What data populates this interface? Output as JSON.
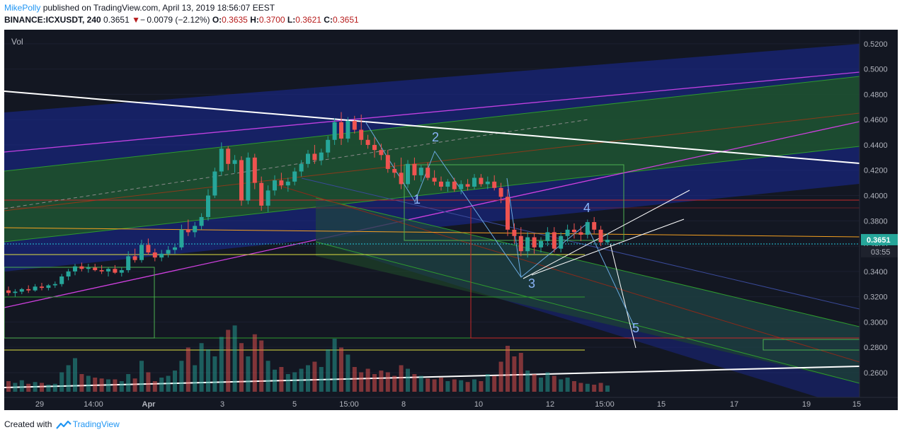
{
  "header": {
    "author": "MikePolly",
    "published": "published on TradingView.com, April 13, 2019 18:56:07 EEST"
  },
  "symbol_bar": {
    "symbol": "BINANCE:ICXUSDT, 240",
    "price": "0.3651",
    "change": "− 0.0079 (−2.12%)",
    "o_label": "O:",
    "o": "0.3635",
    "h_label": "H:",
    "h": "0.3700",
    "l_label": "L:",
    "l": "0.3621",
    "c_label": "C:",
    "c": "0.3651"
  },
  "footer": {
    "created_with": "Created with",
    "brand": "TradingView"
  },
  "colors": {
    "background": "#131722",
    "up": "#26a69a",
    "down": "#ef5350",
    "price_tag": "#26a69a"
  },
  "chart_data": {
    "type": "candlestick",
    "volume_label": "Vol",
    "y_axis": {
      "ticks": [
        "0.5200",
        "0.5000",
        "0.4800",
        "0.4600",
        "0.4400",
        "0.4200",
        "0.4000",
        "0.3800",
        "0.3600",
        "0.3400",
        "0.3200",
        "0.3000",
        "0.2800",
        "0.2600"
      ],
      "ylim": [
        0.246,
        0.5255
      ]
    },
    "x_axis": {
      "ticks": [
        "29",
        "14:00",
        "Apr",
        "3",
        "5",
        "15:00",
        "8",
        "10",
        "12",
        "15:00",
        "15",
        "17",
        "19",
        "15"
      ]
    },
    "last_price": "0.3651",
    "countdown": "03:55",
    "wave_labels": [
      "1",
      "2",
      "3",
      "4",
      "5"
    ],
    "candles": [
      [
        0.325,
        0.328,
        0.321,
        0.323
      ],
      [
        0.323,
        0.326,
        0.32,
        0.324
      ],
      [
        0.324,
        0.327,
        0.322,
        0.326
      ],
      [
        0.326,
        0.329,
        0.323,
        0.325
      ],
      [
        0.325,
        0.33,
        0.324,
        0.328
      ],
      [
        0.328,
        0.331,
        0.325,
        0.327
      ],
      [
        0.327,
        0.33,
        0.325,
        0.329
      ],
      [
        0.329,
        0.332,
        0.327,
        0.33
      ],
      [
        0.33,
        0.338,
        0.328,
        0.336
      ],
      [
        0.336,
        0.342,
        0.333,
        0.34
      ],
      [
        0.34,
        0.346,
        0.337,
        0.344
      ],
      [
        0.344,
        0.347,
        0.34,
        0.342
      ],
      [
        0.342,
        0.346,
        0.339,
        0.343
      ],
      [
        0.343,
        0.346,
        0.34,
        0.341
      ],
      [
        0.341,
        0.345,
        0.338,
        0.34
      ],
      [
        0.34,
        0.343,
        0.336,
        0.342
      ],
      [
        0.342,
        0.345,
        0.338,
        0.339
      ],
      [
        0.339,
        0.343,
        0.336,
        0.341
      ],
      [
        0.341,
        0.356,
        0.339,
        0.352
      ],
      [
        0.352,
        0.358,
        0.347,
        0.349
      ],
      [
        0.349,
        0.365,
        0.347,
        0.361
      ],
      [
        0.361,
        0.366,
        0.353,
        0.355
      ],
      [
        0.355,
        0.358,
        0.348,
        0.351
      ],
      [
        0.351,
        0.357,
        0.348,
        0.354
      ],
      [
        0.354,
        0.36,
        0.351,
        0.357
      ],
      [
        0.357,
        0.362,
        0.354,
        0.359
      ],
      [
        0.359,
        0.377,
        0.357,
        0.373
      ],
      [
        0.373,
        0.381,
        0.368,
        0.371
      ],
      [
        0.371,
        0.379,
        0.367,
        0.376
      ],
      [
        0.376,
        0.386,
        0.373,
        0.383
      ],
      [
        0.383,
        0.405,
        0.38,
        0.4
      ],
      [
        0.4,
        0.422,
        0.398,
        0.419
      ],
      [
        0.419,
        0.442,
        0.416,
        0.437
      ],
      [
        0.437,
        0.439,
        0.42,
        0.425
      ],
      [
        0.425,
        0.432,
        0.418,
        0.428
      ],
      [
        0.428,
        0.431,
        0.392,
        0.396
      ],
      [
        0.396,
        0.434,
        0.393,
        0.43
      ],
      [
        0.43,
        0.433,
        0.405,
        0.41
      ],
      [
        0.41,
        0.415,
        0.388,
        0.392
      ],
      [
        0.392,
        0.408,
        0.387,
        0.404
      ],
      [
        0.404,
        0.416,
        0.4,
        0.412
      ],
      [
        0.412,
        0.418,
        0.405,
        0.408
      ],
      [
        0.408,
        0.414,
        0.403,
        0.411
      ],
      [
        0.411,
        0.422,
        0.408,
        0.419
      ],
      [
        0.419,
        0.428,
        0.415,
        0.425
      ],
      [
        0.425,
        0.436,
        0.422,
        0.433
      ],
      [
        0.433,
        0.44,
        0.425,
        0.428
      ],
      [
        0.428,
        0.437,
        0.424,
        0.434
      ],
      [
        0.434,
        0.447,
        0.43,
        0.444
      ],
      [
        0.444,
        0.461,
        0.44,
        0.458
      ],
      [
        0.458,
        0.466,
        0.44,
        0.445
      ],
      [
        0.445,
        0.462,
        0.442,
        0.459
      ],
      [
        0.459,
        0.463,
        0.449,
        0.452
      ],
      [
        0.452,
        0.464,
        0.44,
        0.444
      ],
      [
        0.444,
        0.448,
        0.437,
        0.44
      ],
      [
        0.44,
        0.446,
        0.43,
        0.436
      ],
      [
        0.436,
        0.441,
        0.428,
        0.432
      ],
      [
        0.432,
        0.436,
        0.418,
        0.421
      ],
      [
        0.421,
        0.426,
        0.414,
        0.418
      ],
      [
        0.418,
        0.43,
        0.405,
        0.409
      ],
      [
        0.409,
        0.428,
        0.406,
        0.425
      ],
      [
        0.425,
        0.43,
        0.412,
        0.416
      ],
      [
        0.416,
        0.424,
        0.411,
        0.422
      ],
      [
        0.422,
        0.426,
        0.412,
        0.414
      ],
      [
        0.414,
        0.42,
        0.408,
        0.411
      ],
      [
        0.411,
        0.415,
        0.404,
        0.407
      ],
      [
        0.407,
        0.413,
        0.403,
        0.411
      ],
      [
        0.411,
        0.414,
        0.403,
        0.405
      ],
      [
        0.405,
        0.412,
        0.401,
        0.409
      ],
      [
        0.409,
        0.413,
        0.404,
        0.407
      ],
      [
        0.407,
        0.417,
        0.405,
        0.414
      ],
      [
        0.414,
        0.417,
        0.407,
        0.409
      ],
      [
        0.409,
        0.415,
        0.405,
        0.411
      ],
      [
        0.411,
        0.416,
        0.404,
        0.406
      ],
      [
        0.406,
        0.41,
        0.394,
        0.399
      ],
      [
        0.399,
        0.405,
        0.368,
        0.373
      ],
      [
        0.373,
        0.378,
        0.362,
        0.368
      ],
      [
        0.368,
        0.375,
        0.352,
        0.356
      ],
      [
        0.356,
        0.371,
        0.351,
        0.367
      ],
      [
        0.367,
        0.37,
        0.354,
        0.359
      ],
      [
        0.359,
        0.367,
        0.355,
        0.364
      ],
      [
        0.364,
        0.375,
        0.36,
        0.371
      ],
      [
        0.371,
        0.375,
        0.355,
        0.358
      ],
      [
        0.358,
        0.371,
        0.355,
        0.368
      ],
      [
        0.368,
        0.377,
        0.363,
        0.373
      ],
      [
        0.373,
        0.378,
        0.366,
        0.371
      ],
      [
        0.371,
        0.376,
        0.364,
        0.369
      ],
      [
        0.369,
        0.381,
        0.366,
        0.379
      ],
      [
        0.379,
        0.383,
        0.37,
        0.373
      ],
      [
        0.373,
        0.376,
        0.36,
        0.363
      ],
      [
        0.363,
        0.37,
        0.361,
        0.365
      ]
    ],
    "volume": [
      0.12,
      0.1,
      0.13,
      0.09,
      0.11,
      0.1,
      0.08,
      0.09,
      0.22,
      0.3,
      0.38,
      0.2,
      0.18,
      0.16,
      0.15,
      0.14,
      0.14,
      0.12,
      0.2,
      0.15,
      0.35,
      0.22,
      0.12,
      0.16,
      0.18,
      0.24,
      0.35,
      0.5,
      0.3,
      0.55,
      0.48,
      0.4,
      0.62,
      0.7,
      0.75,
      0.55,
      0.4,
      0.65,
      0.58,
      0.35,
      0.25,
      0.28,
      0.2,
      0.22,
      0.26,
      0.3,
      0.34,
      0.28,
      0.48,
      0.6,
      0.5,
      0.42,
      0.28,
      0.22,
      0.26,
      0.2,
      0.24,
      0.22,
      0.18,
      0.3,
      0.26,
      0.2,
      0.18,
      0.15,
      0.14,
      0.16,
      0.12,
      0.14,
      0.13,
      0.11,
      0.14,
      0.12,
      0.2,
      0.18,
      0.34,
      0.52,
      0.4,
      0.44,
      0.24,
      0.2,
      0.16,
      0.22,
      0.18,
      0.14,
      0.16,
      0.12,
      0.1,
      0.09,
      0.08,
      0.1,
      0.07
    ]
  }
}
